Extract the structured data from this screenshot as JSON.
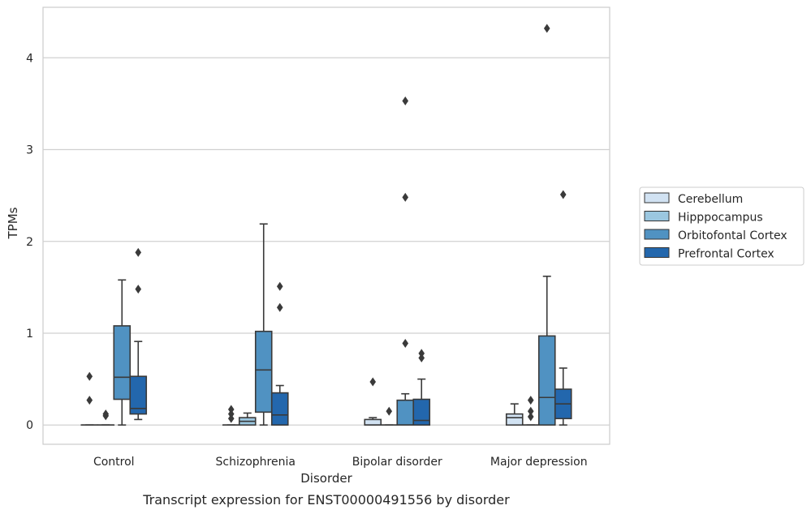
{
  "chart_data": {
    "type": "box",
    "title": "",
    "caption": "Transcript expression for ENST00000491556 by disorder",
    "xlabel": "Disorder",
    "ylabel": "TPMs",
    "ylim": [
      -0.21,
      4.55
    ],
    "yticks": [
      0,
      1,
      2,
      3,
      4
    ],
    "grid": "horizontal",
    "legend_position": "right",
    "categories": [
      "Control",
      "Schizophrenia",
      "Bipolar disorder",
      "Major depression"
    ],
    "series": [
      {
        "name": "Cerebellum",
        "color": "#d1e2f2",
        "boxes": [
          {
            "q1": 0,
            "median": 0,
            "q3": 0,
            "whisker_low": 0,
            "whisker_high": 0,
            "outliers": [
              0.53,
              0.27
            ]
          },
          {
            "q1": 0,
            "median": 0,
            "q3": 0,
            "whisker_low": 0,
            "whisker_high": 0,
            "outliers": [
              0.17,
              0.12,
              0.07
            ]
          },
          {
            "q1": 0,
            "median": 0,
            "q3": 0.06,
            "whisker_low": 0,
            "whisker_high": 0.08,
            "outliers": [
              0.47
            ]
          },
          {
            "q1": 0,
            "median": 0.08,
            "q3": 0.12,
            "whisker_low": 0,
            "whisker_high": 0.23,
            "outliers": []
          }
        ]
      },
      {
        "name": "Hipppocampus",
        "color": "#9bc7e0",
        "boxes": [
          {
            "q1": 0,
            "median": 0,
            "q3": 0,
            "whisker_low": 0,
            "whisker_high": 0,
            "outliers": [
              0.12,
              0.1
            ]
          },
          {
            "q1": 0,
            "median": 0.04,
            "q3": 0.08,
            "whisker_low": 0,
            "whisker_high": 0.13,
            "outliers": []
          },
          {
            "q1": 0,
            "median": 0,
            "q3": 0,
            "whisker_low": 0,
            "whisker_high": 0,
            "outliers": [
              0.15
            ]
          },
          {
            "q1": 0,
            "median": 0,
            "q3": 0,
            "whisker_low": 0,
            "whisker_high": 0,
            "outliers": [
              0.27,
              0.15,
              0.09
            ]
          }
        ]
      },
      {
        "name": "Orbitofontal Cortex",
        "color": "#5092c2",
        "boxes": [
          {
            "q1": 0.28,
            "median": 0.52,
            "q3": 1.08,
            "whisker_low": 0,
            "whisker_high": 1.58,
            "outliers": []
          },
          {
            "q1": 0.14,
            "median": 0.6,
            "q3": 1.02,
            "whisker_low": 0,
            "whisker_high": 2.19,
            "outliers": []
          },
          {
            "q1": 0,
            "median": 0,
            "q3": 0.27,
            "whisker_low": 0,
            "whisker_high": 0.34,
            "outliers": [
              3.53,
              2.48,
              0.89
            ]
          },
          {
            "q1": 0,
            "median": 0.3,
            "q3": 0.97,
            "whisker_low": 0,
            "whisker_high": 1.62,
            "outliers": [
              4.32
            ]
          }
        ]
      },
      {
        "name": "Prefrontal Cortex",
        "color": "#2367ad",
        "boxes": [
          {
            "q1": 0.12,
            "median": 0.18,
            "q3": 0.53,
            "whisker_low": 0.06,
            "whisker_high": 0.91,
            "outliers": [
              1.88,
              1.48
            ]
          },
          {
            "q1": 0,
            "median": 0.11,
            "q3": 0.35,
            "whisker_low": 0,
            "whisker_high": 0.43,
            "outliers": [
              1.51,
              1.28
            ]
          },
          {
            "q1": 0,
            "median": 0.05,
            "q3": 0.28,
            "whisker_low": 0,
            "whisker_high": 0.5,
            "outliers": [
              0.78,
              0.73
            ]
          },
          {
            "q1": 0.07,
            "median": 0.23,
            "q3": 0.39,
            "whisker_low": 0,
            "whisker_high": 0.62,
            "outliers": [
              2.51
            ]
          }
        ]
      }
    ]
  }
}
